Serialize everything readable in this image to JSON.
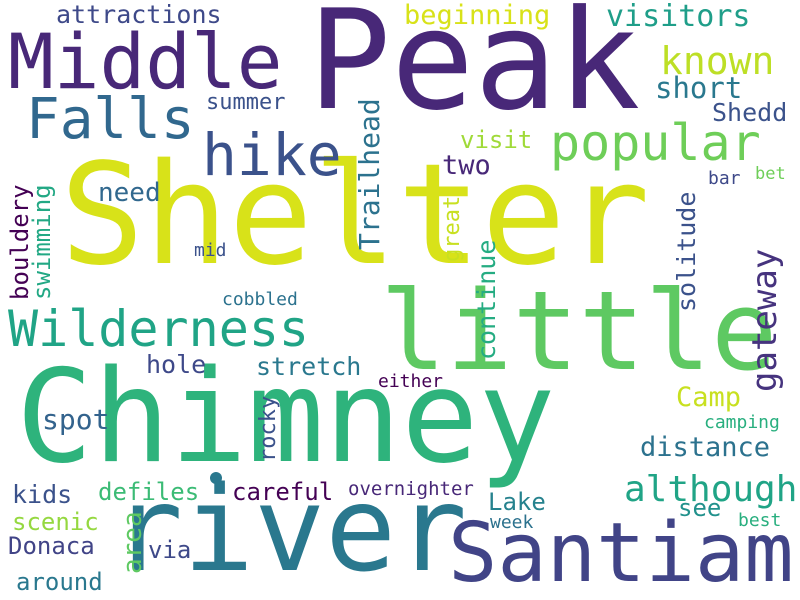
{
  "words": [
    {
      "id": "peak",
      "text": "Peak",
      "color": "#482878"
    },
    {
      "id": "shelter",
      "text": "Shelter",
      "color": "#d8e219"
    },
    {
      "id": "chimney",
      "text": "Chimney",
      "color": "#2eb37c"
    },
    {
      "id": "river",
      "text": "river",
      "color": "#2a788e"
    },
    {
      "id": "santiam",
      "text": "Santiam",
      "color": "#414487"
    },
    {
      "id": "little",
      "text": "little",
      "color": "#5ec962"
    },
    {
      "id": "middle",
      "text": "Middle",
      "color": "#482878"
    },
    {
      "id": "wilderness",
      "text": "Wilderness",
      "color": "#20a486"
    },
    {
      "id": "popular",
      "text": "popular",
      "color": "#6ece58"
    },
    {
      "id": "hike",
      "text": "hike",
      "color": "#3b528b"
    },
    {
      "id": "falls",
      "text": "Falls",
      "color": "#31688e"
    },
    {
      "id": "known",
      "text": "known",
      "color": "#bddf26"
    },
    {
      "id": "visitors",
      "text": "visitors",
      "color": "#1f9e89"
    },
    {
      "id": "beginning",
      "text": "beginning",
      "color": "#d8e219"
    },
    {
      "id": "attractions",
      "text": "attractions",
      "color": "#3e4989"
    },
    {
      "id": "short",
      "text": "short",
      "color": "#2a788e"
    },
    {
      "id": "shedd",
      "text": "Shedd",
      "color": "#3b528b"
    },
    {
      "id": "summer",
      "text": "summer",
      "color": "#3b528b"
    },
    {
      "id": "visit",
      "text": "visit",
      "color": "#a0da39"
    },
    {
      "id": "two",
      "text": "two",
      "color": "#482878"
    },
    {
      "id": "trailhead",
      "text": "Trailhead",
      "color": "#2c728e"
    },
    {
      "id": "need",
      "text": "need",
      "color": "#31688e"
    },
    {
      "id": "bouldery",
      "text": "bouldery",
      "color": "#440154"
    },
    {
      "id": "swimming",
      "text": "swimming",
      "color": "#22a884"
    },
    {
      "id": "gateway",
      "text": "gateway",
      "color": "#46337e"
    },
    {
      "id": "solitude",
      "text": "solitude",
      "color": "#3b528b"
    },
    {
      "id": "continue",
      "text": "continue",
      "color": "#25ac82"
    },
    {
      "id": "great",
      "text": "great",
      "color": "#c8e020"
    },
    {
      "id": "bar",
      "text": "bar",
      "color": "#3e4989"
    },
    {
      "id": "bet",
      "text": "bet",
      "color": "#6ece58"
    },
    {
      "id": "mid",
      "text": "mid",
      "color": "#3b528b"
    },
    {
      "id": "cobbled",
      "text": "cobbled",
      "color": "#2c728e"
    },
    {
      "id": "hole",
      "text": "hole",
      "color": "#3e4989"
    },
    {
      "id": "stretch",
      "text": "stretch",
      "color": "#2a788e"
    },
    {
      "id": "either",
      "text": "either",
      "color": "#440154"
    },
    {
      "id": "camp",
      "text": "Camp",
      "color": "#c8e020"
    },
    {
      "id": "spot",
      "text": "spot",
      "color": "#33638d"
    },
    {
      "id": "rocky",
      "text": "rocky",
      "color": "#3b528b"
    },
    {
      "id": "distance",
      "text": "distance",
      "color": "#2c728e"
    },
    {
      "id": "camping",
      "text": "camping",
      "color": "#29af7f"
    },
    {
      "id": "kids",
      "text": "kids",
      "color": "#3b528b"
    },
    {
      "id": "defiles",
      "text": "defiles",
      "color": "#3bbb75"
    },
    {
      "id": "careful",
      "text": "careful",
      "color": "#440154"
    },
    {
      "id": "overnighter",
      "text": "overnighter",
      "color": "#482878"
    },
    {
      "id": "although",
      "text": "although",
      "color": "#20a486"
    },
    {
      "id": "scenic",
      "text": "scenic",
      "color": "#95d840"
    },
    {
      "id": "lake",
      "text": "Lake",
      "color": "#26828e"
    },
    {
      "id": "see",
      "text": "see",
      "color": "#21918c"
    },
    {
      "id": "week",
      "text": "week",
      "color": "#2c728e"
    },
    {
      "id": "best",
      "text": "best",
      "color": "#29af7f"
    },
    {
      "id": "donaca",
      "text": "Donaca",
      "color": "#414487"
    },
    {
      "id": "area",
      "text": "area",
      "color": "#5ec962"
    },
    {
      "id": "via",
      "text": "via",
      "color": "#3e4989"
    },
    {
      "id": "around",
      "text": "around",
      "color": "#2a788e"
    }
  ]
}
